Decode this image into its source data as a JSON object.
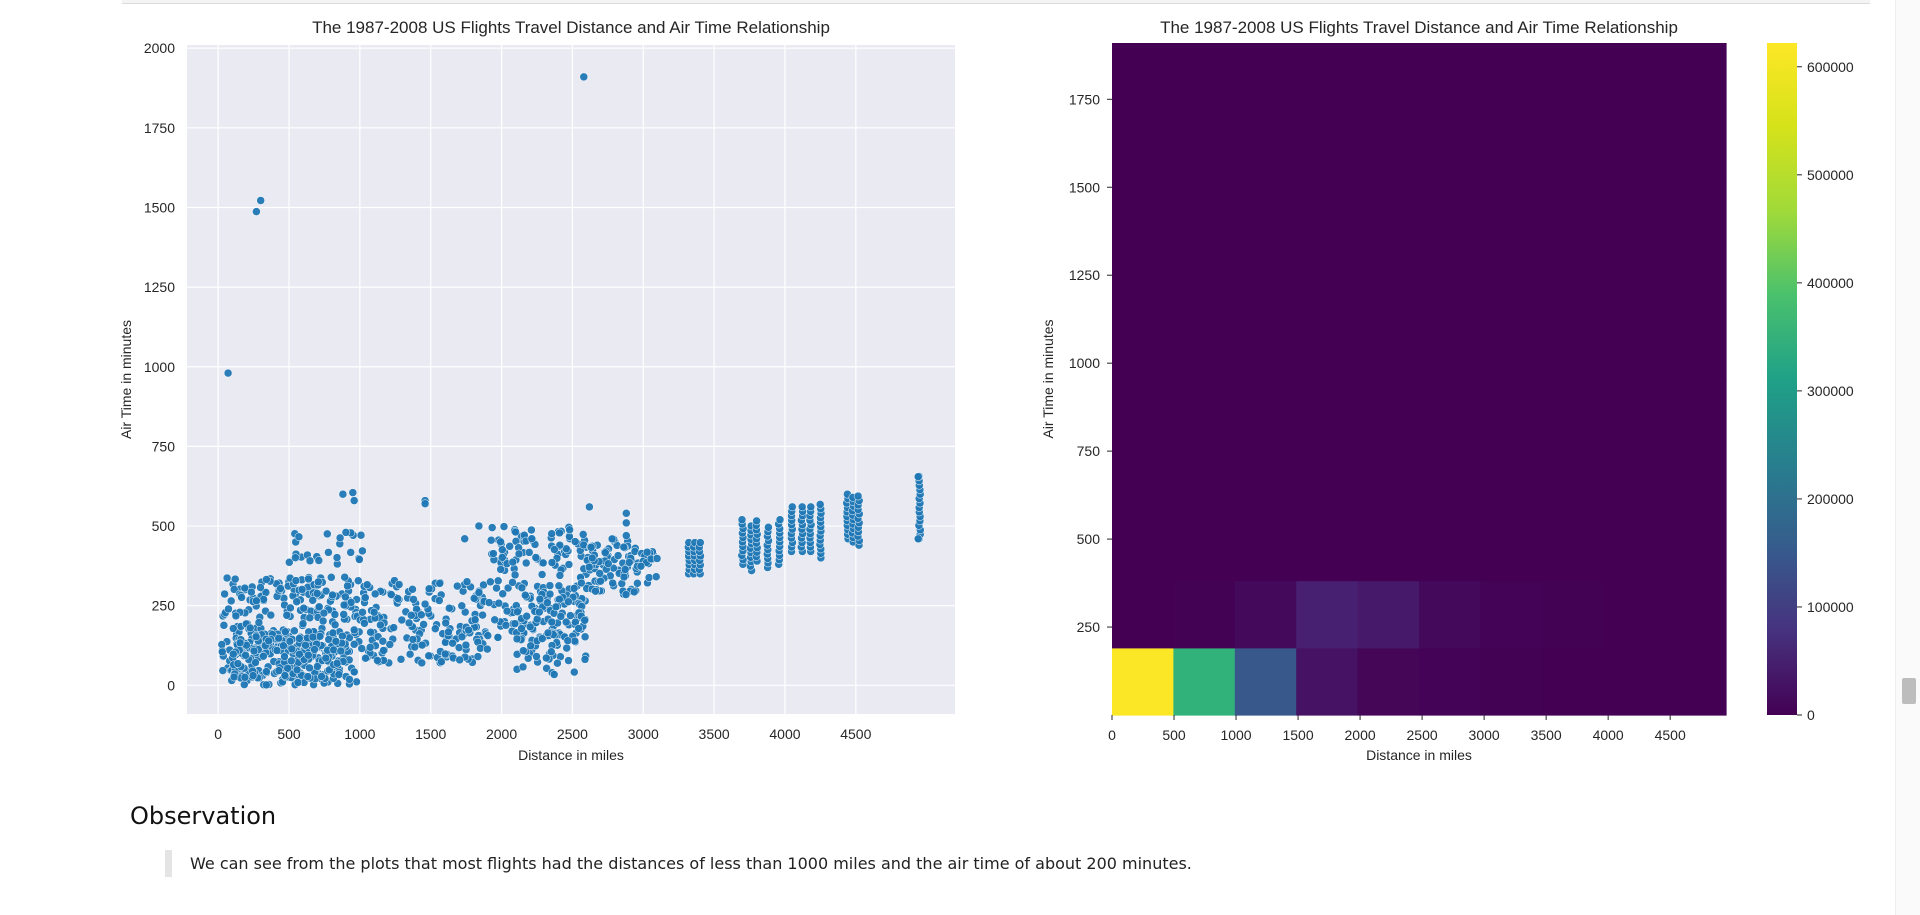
{
  "chart_data": [
    {
      "type": "scatter",
      "title": "The 1987-2008 US Flights Travel Distance and Air Time Relationship",
      "xlabel": "Distance in miles",
      "ylabel": "Air Time in minutes",
      "xlim": [
        -220,
        5200
      ],
      "ylim": [
        -90,
        2010
      ],
      "x_ticks": [
        0,
        500,
        1000,
        1500,
        2000,
        2500,
        3000,
        3500,
        4000,
        4500
      ],
      "y_ticks": [
        0,
        250,
        500,
        750,
        1000,
        1250,
        1500,
        1750,
        2000
      ],
      "grid": true,
      "background": "#eaeaf2",
      "marker_color": "#1f77b4",
      "outliers": [
        {
          "x": 2580,
          "y": 1910
        },
        {
          "x": 300,
          "y": 1522
        },
        {
          "x": 270,
          "y": 1487
        },
        {
          "x": 70,
          "y": 980
        },
        {
          "x": 1460,
          "y": 580
        },
        {
          "x": 1460,
          "y": 570
        },
        {
          "x": 880,
          "y": 600
        },
        {
          "x": 950,
          "y": 605
        },
        {
          "x": 960,
          "y": 580
        },
        {
          "x": 1840,
          "y": 500
        },
        {
          "x": 1740,
          "y": 460
        },
        {
          "x": 2620,
          "y": 560
        },
        {
          "x": 2880,
          "y": 540
        },
        {
          "x": 2880,
          "y": 510
        },
        {
          "x": 2880,
          "y": 470
        },
        {
          "x": 4940,
          "y": 460
        },
        {
          "x": 4940,
          "y": 655
        }
      ],
      "clusters": [
        {
          "x_range": [
            20,
            1000
          ],
          "y_range": [
            0,
            340
          ],
          "count": 340
        },
        {
          "x_range": [
            100,
            900
          ],
          "y_range": [
            20,
            160
          ],
          "count": 160
        },
        {
          "x_range": [
            1000,
            1900
          ],
          "y_range": [
            70,
            330
          ],
          "count": 190
        },
        {
          "x_range": [
            1900,
            2600
          ],
          "y_range": [
            150,
            500
          ],
          "count": 190
        },
        {
          "x_range": [
            2100,
            2600
          ],
          "y_range": [
            30,
            260
          ],
          "count": 80
        },
        {
          "x_range": [
            2600,
            2950
          ],
          "y_range": [
            280,
            460
          ],
          "count": 80
        },
        {
          "x_range": [
            2950,
            3100
          ],
          "y_range": [
            320,
            420
          ],
          "count": 25
        },
        {
          "x_range": [
            500,
            1100
          ],
          "y_range": [
            380,
            480
          ],
          "count": 25
        }
      ],
      "columns": [
        {
          "x": 3320,
          "y_range": [
            350,
            460
          ]
        },
        {
          "x": 3360,
          "y_range": [
            350,
            460
          ]
        },
        {
          "x": 3400,
          "y_range": [
            350,
            460
          ]
        },
        {
          "x": 3700,
          "y_range": [
            380,
            530
          ]
        },
        {
          "x": 3760,
          "y_range": [
            360,
            510
          ]
        },
        {
          "x": 3800,
          "y_range": [
            390,
            520
          ]
        },
        {
          "x": 3880,
          "y_range": [
            370,
            500
          ]
        },
        {
          "x": 3960,
          "y_range": [
            380,
            520
          ]
        },
        {
          "x": 4050,
          "y_range": [
            420,
            560
          ]
        },
        {
          "x": 4120,
          "y_range": [
            420,
            560
          ]
        },
        {
          "x": 4180,
          "y_range": [
            420,
            560
          ]
        },
        {
          "x": 4250,
          "y_range": [
            400,
            580
          ]
        },
        {
          "x": 4440,
          "y_range": [
            460,
            600
          ]
        },
        {
          "x": 4480,
          "y_range": [
            450,
            600
          ]
        },
        {
          "x": 4520,
          "y_range": [
            440,
            600
          ]
        },
        {
          "x": 4950,
          "y_range": [
            460,
            660
          ]
        }
      ]
    },
    {
      "type": "heatmap",
      "title": "The 1987-2008 US Flights Travel Distance and Air Time Relationship",
      "xlabel": "Distance in miles",
      "ylabel": "Air Time in minutes",
      "xlim": [
        0,
        4950
      ],
      "ylim": [
        0,
        1910
      ],
      "x_ticks": [
        0,
        500,
        1000,
        1500,
        2000,
        2500,
        3000,
        3500,
        4000,
        4500
      ],
      "y_ticks": [
        250,
        500,
        750,
        1000,
        1250,
        1500,
        1750
      ],
      "x_edges": [
        0,
        495,
        990,
        1485,
        1980,
        2475,
        2970,
        3465,
        3960,
        4455,
        4950
      ],
      "y_edges": [
        0,
        191,
        382,
        573,
        764,
        955,
        1146,
        1337,
        1528,
        1719,
        1910
      ],
      "counts": [
        [
          620000,
          400000,
          170000,
          30000,
          8000,
          3000,
          1000,
          300,
          200,
          50
        ],
        [
          0,
          2000,
          15000,
          55000,
          42000,
          15000,
          4000,
          1000,
          500,
          200
        ],
        [
          0,
          0,
          0,
          0,
          0,
          0,
          0,
          0,
          0,
          0
        ],
        [
          0,
          0,
          0,
          0,
          0,
          0,
          0,
          0,
          0,
          0
        ],
        [
          0,
          0,
          0,
          0,
          0,
          0,
          0,
          0,
          0,
          0
        ],
        [
          0,
          0,
          0,
          0,
          0,
          0,
          0,
          0,
          0,
          0
        ],
        [
          0,
          0,
          0,
          0,
          0,
          0,
          0,
          0,
          0,
          0
        ],
        [
          0,
          0,
          0,
          0,
          0,
          0,
          0,
          0,
          0,
          0
        ],
        [
          0,
          0,
          0,
          0,
          0,
          0,
          0,
          0,
          0,
          0
        ],
        [
          0,
          0,
          0,
          0,
          0,
          0,
          0,
          0,
          0,
          0
        ]
      ],
      "colormap": "viridis",
      "colorbar": {
        "min": 0,
        "max": 622000,
        "ticks": [
          0,
          100000,
          200000,
          300000,
          400000,
          500000,
          600000
        ]
      }
    }
  ],
  "observation": {
    "heading": "Observation",
    "text": "We can see from the plots that most flights had the distances of less than 1000 miles and the air time of about 200 minutes."
  }
}
